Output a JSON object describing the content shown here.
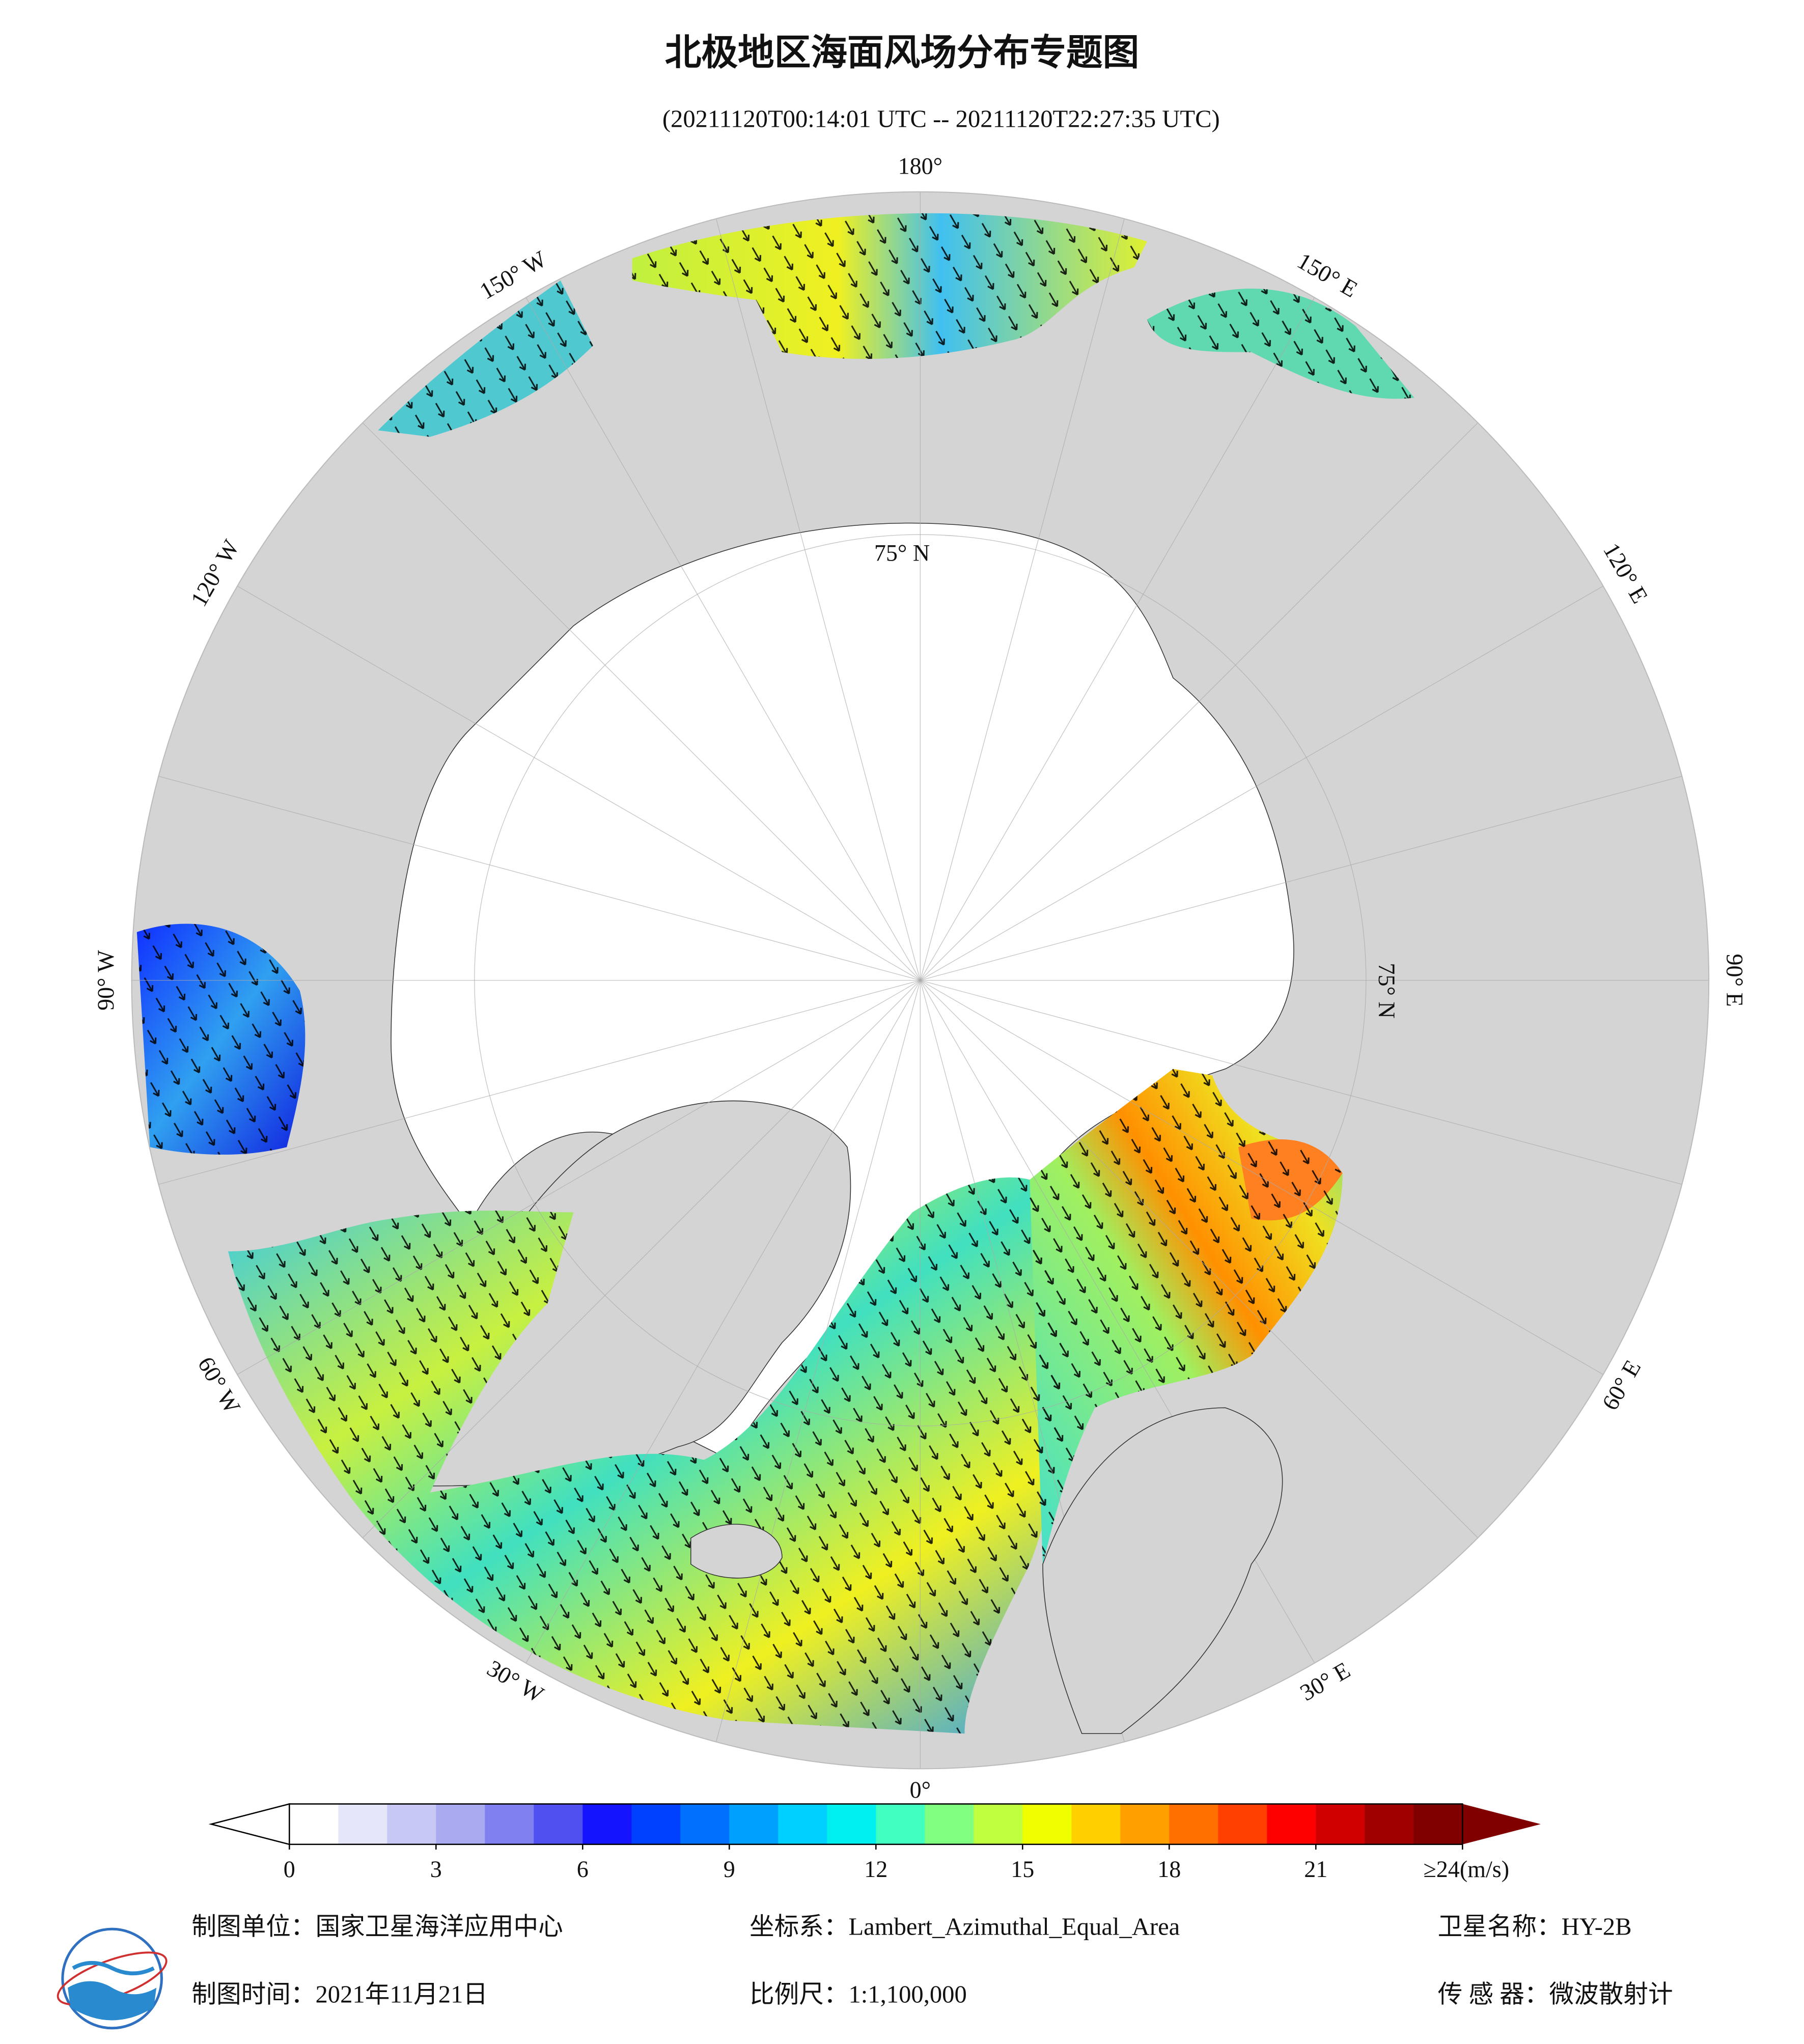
{
  "header": {
    "title": "北极地区海面风场分布专题图",
    "subtitle": "(20211120T00:14:01 UTC -- 20211120T22:27:35 UTC)"
  },
  "map": {
    "longitude_labels": [
      "180°",
      "150° E",
      "120° E",
      "90° E",
      "60° E",
      "30° E",
      "0°",
      "30° W",
      "60° W",
      "90° W",
      "120° W",
      "150° W"
    ],
    "latitude_labels": [
      "75° N",
      "75° N"
    ]
  },
  "colorbar": {
    "lim": [
      0,
      24
    ],
    "ticks": [
      0,
      3,
      6,
      9,
      12,
      15,
      18,
      21,
      {
        "value": 24,
        "label": "≥24(m/s)"
      }
    ],
    "colors": [
      "#ffffff",
      "#e6e6fa",
      "#c8c8f5",
      "#aaaaf0",
      "#8080f0",
      "#5050f0",
      "#1414ff",
      "#0040ff",
      "#0070ff",
      "#00a0ff",
      "#00d0ff",
      "#00f0f0",
      "#40ffc0",
      "#80ff80",
      "#c0ff40",
      "#f0ff00",
      "#ffd000",
      "#ffa000",
      "#ff7000",
      "#ff4000",
      "#ff0000",
      "#d00000",
      "#a00000",
      "#800000"
    ]
  },
  "footer": {
    "unit": "制图单位：国家卫星海洋应用中心",
    "projection": "坐标系：Lambert_Azimuthal_Equal_Area",
    "satellite": "卫星名称：HY-2B",
    "date": "制图时间：2021年11月21日",
    "scale": "比例尺：1:1,100,000",
    "sensor": "传 感 器：微波散射计"
  }
}
